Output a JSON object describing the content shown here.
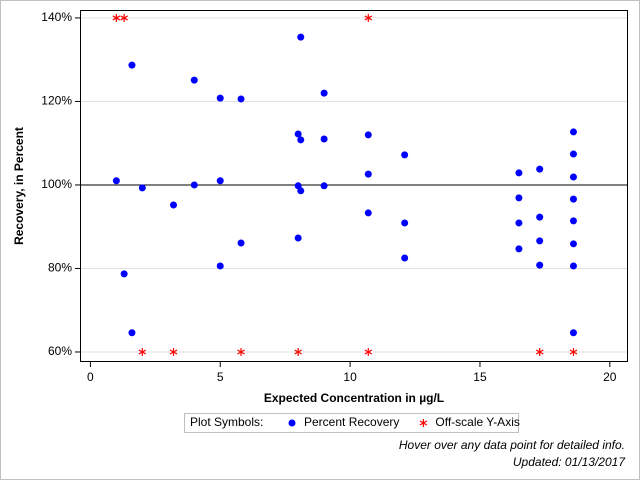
{
  "chart_data": {
    "type": "scatter",
    "xlabel": "Expected Concentration in µg/L",
    "ylabel": "Recovery, in Percent",
    "xlim": [
      -0.4,
      20.7
    ],
    "ylim": [
      57.6,
      141.9
    ],
    "xticks": [
      0,
      5,
      10,
      15,
      20
    ],
    "yticks": [
      {
        "value": 60,
        "label": "60%"
      },
      {
        "value": 80,
        "label": "80%"
      },
      {
        "value": 100,
        "label": "100%"
      },
      {
        "value": 120,
        "label": "120%"
      },
      {
        "value": 140,
        "label": "140%"
      }
    ],
    "grid": true,
    "reference_line": 100,
    "legend_title": "Plot Symbols:",
    "series": [
      {
        "name": "Percent Recovery",
        "color": "#0000ff",
        "marker": "circle",
        "x": [
          1.0,
          1.3,
          1.6,
          1.6,
          2.0,
          3.2,
          4.0,
          4.0,
          5.0,
          5.0,
          5.0,
          5.8,
          5.8,
          8.1,
          8.0,
          8.1,
          8.0,
          8.1,
          8.0,
          9.0,
          9.0,
          9.0,
          10.7,
          10.7,
          10.7,
          12.1,
          12.1,
          12.1,
          16.5,
          16.5,
          16.5,
          16.5,
          17.3,
          17.3,
          17.3,
          17.3,
          18.6,
          18.6,
          18.6,
          18.6,
          18.6,
          18.6,
          18.6,
          18.6
        ],
        "values": [
          101,
          78.7,
          128.7,
          64.6,
          99.3,
          95.2,
          125.1,
          100,
          120.8,
          101,
          80.6,
          120.6,
          86.1,
          135.4,
          112.2,
          110.8,
          99.8,
          98.6,
          87.3,
          122,
          111,
          99.8,
          112,
          102.6,
          93.3,
          107.2,
          90.9,
          82.5,
          102.9,
          96.9,
          90.9,
          84.7,
          103.8,
          92.3,
          86.6,
          80.8,
          112.7,
          107.4,
          101.9,
          96.6,
          91.4,
          85.9,
          80.6,
          64.6
        ]
      },
      {
        "name": "Off-scale Y-Axis",
        "color": "#ff0000",
        "marker": "asterisk",
        "x": [
          1.0,
          1.3,
          10.7,
          2.0,
          3.2,
          5.8,
          8.0,
          10.7,
          17.3,
          18.6
        ],
        "values": [
          140,
          140,
          140,
          60,
          60,
          60,
          60,
          60,
          60,
          60
        ]
      }
    ],
    "notes": [
      "Hover over any data point for detailed info.",
      "Updated: 01/13/2017"
    ]
  }
}
